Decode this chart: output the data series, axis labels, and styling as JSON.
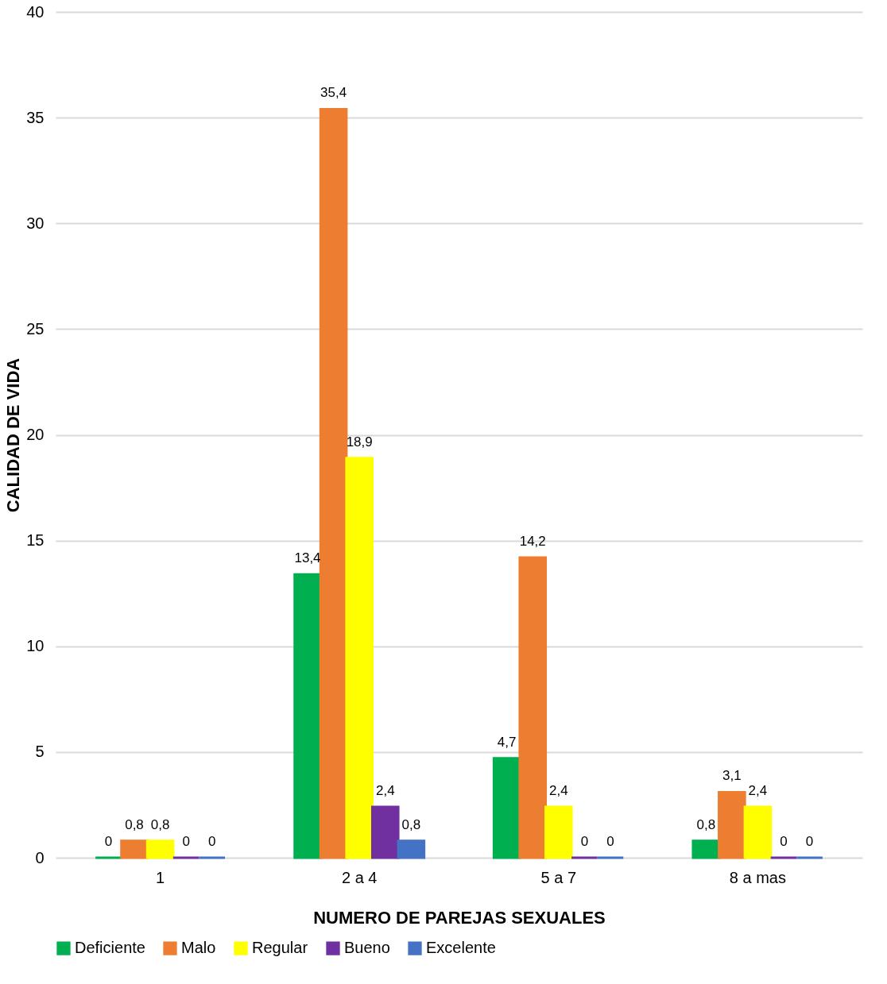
{
  "chart_data": {
    "type": "bar",
    "xlabel": "NUMERO DE PAREJAS SEXUALES",
    "ylabel": "CALIDAD DE VIDA",
    "categories": [
      "1",
      "2 a 4",
      "5 a 7",
      "8 a mas"
    ],
    "series": [
      {
        "name": "Deficiente",
        "color": "#00b050",
        "values": [
          0,
          13.4,
          4.7,
          0.8
        ],
        "value_labels": [
          "0",
          "13,4",
          "4,7",
          "0,8"
        ]
      },
      {
        "name": "Malo",
        "color": "#ed7d31",
        "values": [
          0.8,
          35.4,
          14.2,
          3.1
        ],
        "value_labels": [
          "0,8",
          "35,4",
          "14,2",
          "3,1"
        ]
      },
      {
        "name": "Regular",
        "color": "#ffff00",
        "values": [
          0.8,
          18.9,
          2.4,
          2.4
        ],
        "value_labels": [
          "0,8",
          "18,9",
          "2,4",
          "2,4"
        ]
      },
      {
        "name": "Bueno",
        "color": "#7030a0",
        "values": [
          0,
          2.4,
          0,
          0
        ],
        "value_labels": [
          "0",
          "2,4",
          "0",
          "0"
        ]
      },
      {
        "name": "Excelente",
        "color": "#4472c4",
        "values": [
          0,
          0.8,
          0,
          0
        ],
        "value_labels": [
          "0",
          "0,8",
          "0",
          "0"
        ]
      }
    ],
    "ylim": [
      0,
      40
    ],
    "yticks": [
      0,
      5,
      10,
      15,
      20,
      25,
      30,
      35,
      40
    ],
    "grid": "y",
    "legend": "bottom"
  }
}
